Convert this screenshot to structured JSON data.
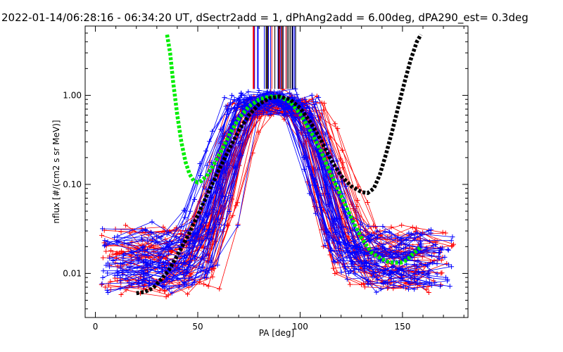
{
  "chart_data": {
    "type": "line",
    "title": "2022-01-14/06:28:16 - 06:34:20 UT, dSectr2add = 1, dPhAng2add = 6.00deg, dPA290_est=    0.3deg",
    "xlabel": "PA [deg]",
    "ylabel": "nflux [#/(cm2 s sr MeV)]",
    "xlim": [
      -5,
      182
    ],
    "ylim": [
      0.0032,
      6.0
    ],
    "yscale": "log",
    "xticks": [
      0,
      50,
      100,
      150
    ],
    "xtick_labels": [
      "0",
      "50",
      "100",
      "150"
    ],
    "yticks": [
      0.01,
      0.1,
      1.0
    ],
    "ytick_labels": [
      "0.01",
      "0.10",
      "1.00"
    ],
    "grid": false,
    "colors": {
      "red_spectra": "#ff0000",
      "blue_spectra": "#0000ff",
      "green_fit": "#00ee00",
      "black_fit": "#000000",
      "axes": "#000000"
    },
    "fits": [
      {
        "color": "#00ee00",
        "x": [
          35,
          36.5,
          38,
          40,
          42,
          44,
          46,
          48,
          50,
          52,
          55,
          58,
          62,
          66,
          70,
          75,
          80,
          85,
          90,
          95,
          100,
          105,
          110,
          115,
          120,
          125,
          130,
          135,
          140,
          143,
          146,
          149,
          151,
          153,
          155,
          157,
          159
        ],
        "y": [
          5.5,
          3.0,
          1.4,
          0.6,
          0.3,
          0.18,
          0.13,
          0.11,
          0.105,
          0.11,
          0.13,
          0.17,
          0.25,
          0.38,
          0.55,
          0.75,
          0.9,
          0.97,
          0.96,
          0.85,
          0.62,
          0.4,
          0.24,
          0.13,
          0.075,
          0.042,
          0.025,
          0.017,
          0.0145,
          0.0135,
          0.0132,
          0.0132,
          0.0137,
          0.0148,
          0.0165,
          0.018,
          0.02
        ]
      },
      {
        "color": "#000000",
        "x": [
          20,
          24,
          28,
          32,
          36,
          40,
          45,
          50,
          55,
          60,
          65,
          70,
          75,
          80,
          85,
          90,
          95,
          100,
          105,
          110,
          115,
          120,
          125,
          130,
          133,
          136,
          139,
          142,
          145,
          148,
          151,
          154,
          157,
          159
        ],
        "y": [
          0.006,
          0.0062,
          0.0068,
          0.0085,
          0.011,
          0.016,
          0.026,
          0.045,
          0.08,
          0.14,
          0.24,
          0.4,
          0.6,
          0.8,
          0.93,
          0.97,
          0.9,
          0.72,
          0.5,
          0.32,
          0.19,
          0.125,
          0.095,
          0.082,
          0.08,
          0.09,
          0.13,
          0.22,
          0.4,
          0.75,
          1.4,
          2.5,
          4.0,
          5.3
        ]
      }
    ],
    "spectra_bundles": [
      {
        "color": "#ff0000",
        "count": 42,
        "peak_pa": 88,
        "peak_value": 0.8
      },
      {
        "color": "#0000ff",
        "count": 48,
        "peak_pa": 86,
        "peak_value": 0.88
      }
    ],
    "vertical_markers": {
      "pa_range": [
        77,
        98
      ],
      "count": 40,
      "colors": [
        "#0000ff",
        "#ff0000",
        "#000000"
      ]
    }
  }
}
